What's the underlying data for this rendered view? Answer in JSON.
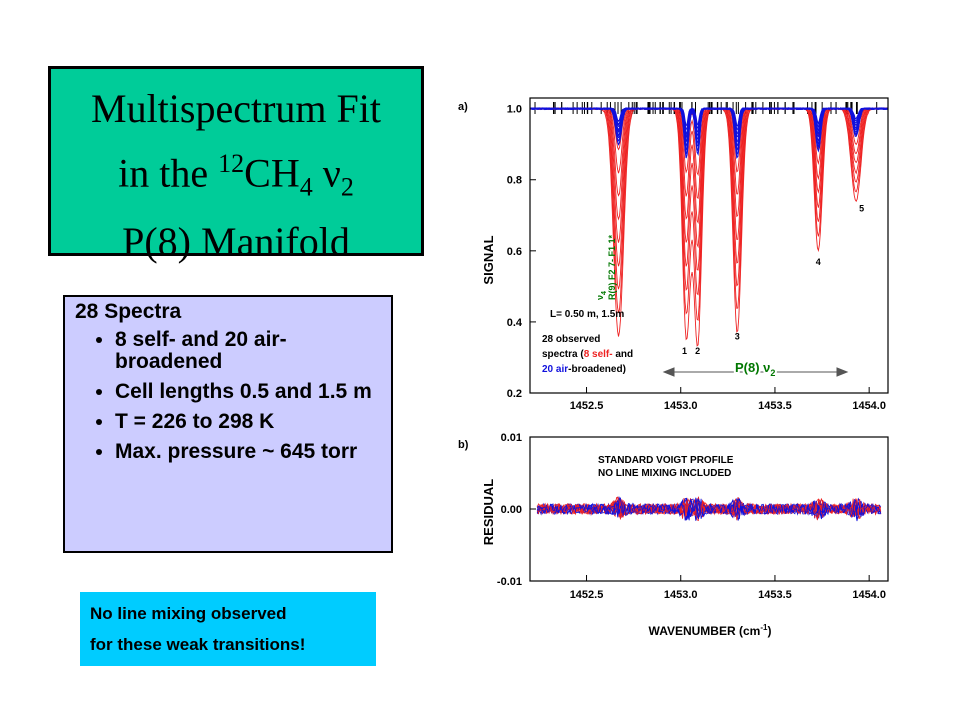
{
  "title": {
    "line1": "Multispectrum Fit",
    "line2_prefix": "in the ",
    "line2_iso": "12",
    "line2_mol": "CH",
    "line2_sub4": "4",
    "line2_nu": "ν",
    "line2_sub2": "2",
    "line3": "P(8) Manifold"
  },
  "info": {
    "heading": "28 Spectra",
    "bullets": [
      "8 self- and 20 air-broadened",
      "Cell lengths 0.5 and 1.5 m",
      "T = 226 to 298 K",
      "Max. pressure ~ 645 torr"
    ]
  },
  "note": {
    "line1": "No line mixing observed",
    "line2": "for these weak transitions!"
  },
  "colors": {
    "self": "#ee2222",
    "air": "#1111dd",
    "assignment": "#007700",
    "title_bg": "#00cc99",
    "info_bg": "#ccccff",
    "note_bg": "#00ccff"
  },
  "chart_data": [
    {
      "panel_label": "a)",
      "type": "line",
      "ylabel": "SIGNAL",
      "xlim": [
        1452.2,
        1454.1
      ],
      "ylim": [
        0.2,
        1.03
      ],
      "x_ticks": [
        "1452.5",
        "1453.0",
        "1453.5",
        "1454.0"
      ],
      "y_ticks": [
        "1.0",
        "0.8",
        "0.6",
        "0.4",
        "0.2"
      ],
      "series": [
        {
          "group": "self",
          "min_values": [
            0.36,
            0.34,
            0.37,
            0.6,
            0.74
          ]
        },
        {
          "group": "air",
          "min_values": [
            0.9,
            0.85,
            0.86,
            0.88,
            0.92
          ]
        }
      ],
      "line_positions": [
        1452.67,
        1453.03,
        1453.09,
        1453.3,
        1453.73,
        1453.93
      ],
      "line_numbers": [
        "1",
        "2",
        "3",
        "4",
        "5"
      ],
      "annotations": {
        "assignment_nu": "ν",
        "assignment_sub": "4",
        "assignment": "R(9) F2 7- F1 1*",
        "cell": "L= 0.50 m, 1.5m",
        "observed_1": "28 observed",
        "observed_2a": "spectra (",
        "observed_2b": "8 self-",
        "observed_2c": " and",
        "observed_3a": "20 air",
        "observed_3b": "-broadened)",
        "band": "P(8) ν",
        "band_sub": "2"
      }
    },
    {
      "panel_label": "b)",
      "type": "line",
      "ylabel": "RESIDUAL",
      "xlabel": "WAVENUMBER (cm",
      "xlabel_sup": "-1",
      "xlabel_end": ")",
      "xlim": [
        1452.2,
        1454.1
      ],
      "ylim": [
        -0.01,
        0.01
      ],
      "x_ticks": [
        "1452.5",
        "1453.0",
        "1453.5",
        "1454.0"
      ],
      "y_ticks": [
        "0.01",
        "0.00",
        "-0.01"
      ],
      "residual_amplitude": 0.0012,
      "annotations": {
        "line1": "STANDARD VOIGT PROFILE",
        "line2": "NO LINE MIXING INCLUDED"
      }
    }
  ]
}
